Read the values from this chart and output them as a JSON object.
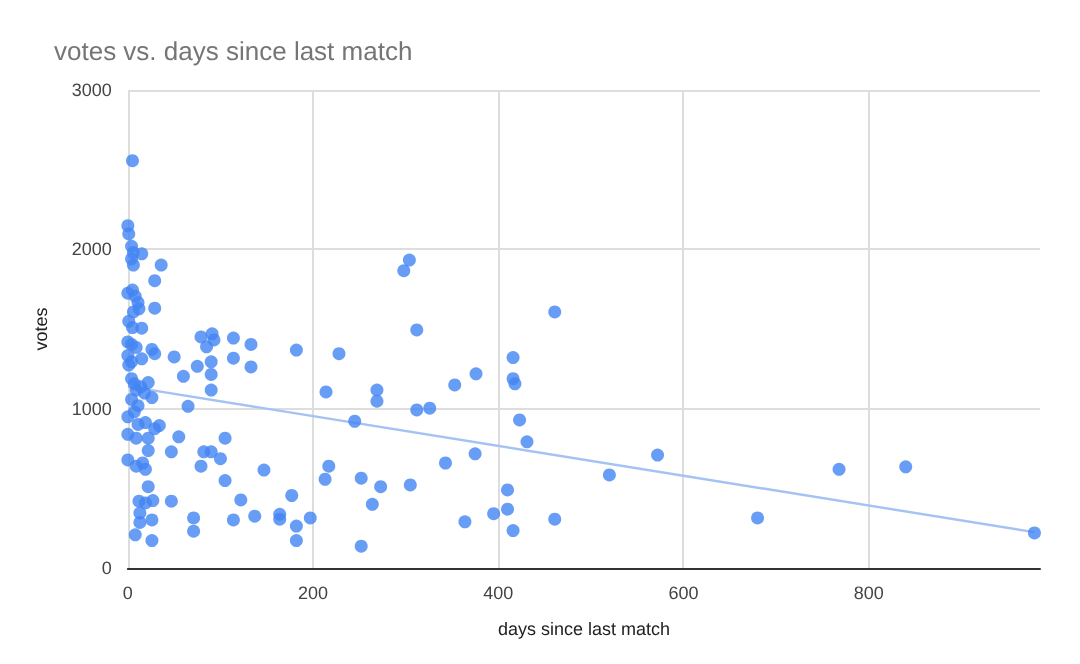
{
  "chart_data": {
    "type": "scatter",
    "title": "votes vs. days since last match",
    "xlabel": "days since last match",
    "ylabel": "votes",
    "xlim": [
      0,
      985
    ],
    "xticks": [
      0,
      200,
      400,
      600,
      800
    ],
    "ylim": [
      0,
      3000
    ],
    "yticks": [
      0,
      1000,
      2000,
      3000
    ],
    "grid": true,
    "marker": "circle",
    "series": [
      {
        "color": "#4285f4",
        "x": [
          5,
          0,
          1,
          4,
          6,
          4,
          6,
          15,
          36,
          29,
          0,
          5,
          8,
          11,
          6,
          12,
          29,
          1,
          5,
          15,
          0,
          4,
          9,
          0,
          4,
          15,
          26,
          29,
          1,
          50,
          60,
          79,
          85,
          91,
          93,
          75,
          90,
          90,
          90,
          114,
          133,
          114,
          133,
          182,
          4,
          7,
          14,
          22,
          9,
          18,
          26,
          4,
          11,
          7,
          0,
          11,
          19,
          29,
          34,
          65,
          214,
          0,
          9,
          22,
          55,
          0,
          9,
          16,
          22,
          19,
          47,
          82,
          90,
          105,
          79,
          100,
          147,
          105,
          22,
          12,
          19,
          27,
          47,
          122,
          177,
          13,
          13,
          26,
          71,
          114,
          137,
          164,
          164,
          197,
          182,
          8,
          26,
          71,
          182,
          217,
          213,
          228,
          245,
          252,
          252,
          264,
          269,
          269,
          273,
          298,
          304,
          312,
          305,
          312,
          326,
          343,
          353,
          364,
          375,
          376,
          395,
          410,
          410,
          416,
          416,
          416,
          418,
          423,
          431,
          461,
          461,
          520,
          572,
          680,
          768,
          840,
          979
        ],
        "values": [
          2556,
          2148,
          2097,
          2019,
          1980,
          1940,
          1901,
          1972,
          1901,
          1803,
          1725,
          1744,
          1705,
          1666,
          1607,
          1627,
          1631,
          1548,
          1509,
          1505,
          1419,
          1403,
          1384,
          1333,
          1294,
          1313,
          1372,
          1345,
          1274,
          1325,
          1203,
          1450,
          1388,
          1470,
          1431,
          1266,
          1294,
          1215,
          1117,
          1443,
          1403,
          1317,
          1262,
          1368,
          1188,
          1156,
          1137,
          1164,
          1117,
          1098,
          1070,
          1058,
          1019,
          980,
          949,
          901,
          913,
          874,
          894,
          1015,
          1105,
          839,
          815,
          815,
          823,
          678,
          639,
          659,
          737,
          619,
          729,
          729,
          729,
          815,
          639,
          686,
          615,
          549,
          510,
          419,
          408,
          423,
          419,
          427,
          455,
          345,
          286,
          302,
          314,
          302,
          325,
          337,
          306,
          314,
          263,
          208,
          172,
          231,
          172,
          639,
          557,
          1345,
          921,
          137,
          564,
          400,
          1117,
          1047,
          510,
          1866,
          1933,
          1494,
          521,
          992,
          1003,
          659,
          1149,
          290,
          717,
          1219,
          341,
          490,
          369,
          235,
          1321,
          1188,
          1156,
          929,
          792,
          1607,
          306,
          584,
          709,
          314,
          619,
          635,
          220
        ]
      },
      {
        "type": "line",
        "color": "#a4c2f4",
        "marker": "none",
        "x": [
          0,
          979
        ],
        "values": [
          1140,
          225
        ]
      }
    ]
  }
}
